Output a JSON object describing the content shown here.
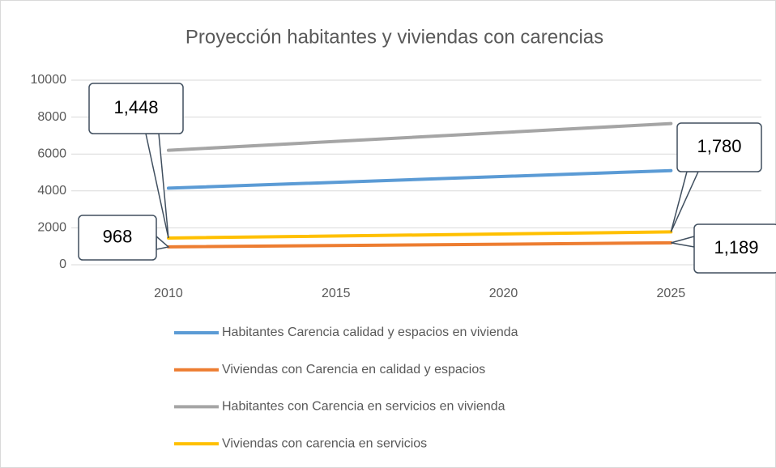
{
  "chart_data": {
    "type": "line",
    "title": "Proyección habitantes y viviendas con carencias",
    "x": [
      2010,
      2025
    ],
    "xlim": [
      2007.1,
      2027.7
    ],
    "xticks": [
      2010,
      2015,
      2020,
      2025
    ],
    "ylim": [
      0,
      10000
    ],
    "yticks": [
      0,
      2000,
      4000,
      6000,
      8000,
      10000
    ],
    "grid": true,
    "legend": "bottom",
    "series": [
      {
        "name": "Habitantes Carencia calidad y espacios en vivienda",
        "color": "#5b9bd5",
        "values": [
          4150,
          5100
        ]
      },
      {
        "name": "Viviendas con Carencia en calidad y espacios",
        "color": "#ed7d31",
        "values": [
          968,
          1189
        ],
        "value_labels": [
          "968",
          "1,189"
        ]
      },
      {
        "name": "Habitantes con Carencia en servicios en vivienda",
        "color": "#a5a5a5",
        "values": [
          6200,
          7650
        ]
      },
      {
        "name": "Viviendas con carencia en servicios",
        "color": "#ffc000",
        "values": [
          1448,
          1780
        ],
        "value_labels": [
          "1,448",
          "1,780"
        ]
      }
    ]
  }
}
